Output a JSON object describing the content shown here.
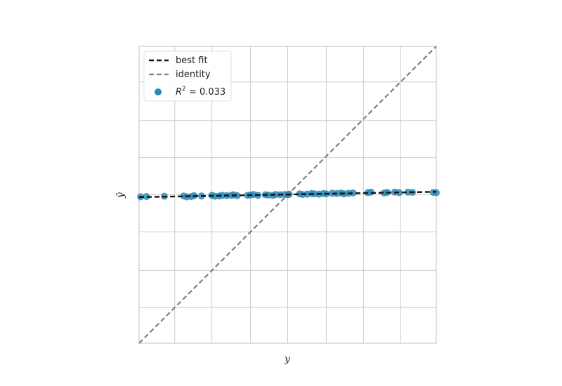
{
  "chart_data": {
    "type": "scatter",
    "title": "",
    "xlabel": "y",
    "ylabel": "ŷ",
    "xlim": [
      0,
      100
    ],
    "ylim": [
      0,
      100
    ],
    "grid": true,
    "legend_position": "top-left",
    "x_gridlines": [
      12,
      24.5,
      37.5,
      50,
      63,
      75.5,
      88
    ],
    "y_gridlines": [
      12,
      24.5,
      37.5,
      50,
      62.5,
      75,
      88
    ],
    "best_fit": {
      "label": "best fit",
      "x": [
        0,
        100
      ],
      "y": [
        49.2,
        51.0
      ],
      "color": "#111111"
    },
    "identity": {
      "label": "identity",
      "x": [
        0,
        100
      ],
      "y": [
        0,
        100
      ],
      "color": "#808080"
    },
    "scatter": {
      "label_prefix": "R",
      "label_sup": "2",
      "label_suffix": " = 0.033",
      "color": "#2a8ab4",
      "points": [
        [
          0.5,
          49.3
        ],
        [
          2.5,
          49.4
        ],
        [
          8.5,
          49.5
        ],
        [
          15,
          49.6
        ],
        [
          16,
          49.3
        ],
        [
          17.5,
          49.4
        ],
        [
          18.5,
          49.7
        ],
        [
          21,
          49.6
        ],
        [
          24.5,
          49.8
        ],
        [
          25.5,
          49.5
        ],
        [
          27,
          49.6
        ],
        [
          28,
          49.8
        ],
        [
          29.5,
          49.7
        ],
        [
          31,
          49.8
        ],
        [
          31.8,
          50.0
        ],
        [
          33,
          49.7
        ],
        [
          36.5,
          49.8
        ],
        [
          37.5,
          49.9
        ],
        [
          38.5,
          50.1
        ],
        [
          40,
          49.8
        ],
        [
          42.5,
          50.0
        ],
        [
          43.5,
          49.9
        ],
        [
          45,
          49.8
        ],
        [
          46,
          50.1
        ],
        [
          47.5,
          50.0
        ],
        [
          49,
          50.1
        ],
        [
          50,
          50.0
        ],
        [
          50.5,
          50.2
        ],
        [
          54,
          50.3
        ],
        [
          55,
          50.1
        ],
        [
          56.5,
          50.2
        ],
        [
          58,
          50.4
        ],
        [
          59,
          50.3
        ],
        [
          60.5,
          50.2
        ],
        [
          62,
          50.4
        ],
        [
          63,
          50.3
        ],
        [
          65,
          50.5
        ],
        [
          66.5,
          50.4
        ],
        [
          68,
          50.6
        ],
        [
          69,
          50.3
        ],
        [
          70.5,
          50.5
        ],
        [
          72,
          50.6
        ],
        [
          77,
          50.7
        ],
        [
          78,
          50.9
        ],
        [
          82.5,
          50.6
        ],
        [
          83.5,
          50.8
        ],
        [
          86,
          50.9
        ],
        [
          87.5,
          50.7
        ],
        [
          90.5,
          50.9
        ],
        [
          92,
          50.8
        ],
        [
          99,
          50.8
        ],
        [
          100,
          50.7
        ]
      ]
    }
  }
}
